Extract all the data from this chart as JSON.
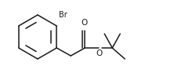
{
  "bg_color": "#ffffff",
  "line_color": "#1a1a1a",
  "text_color": "#1a1a1a",
  "figsize": [
    2.5,
    0.98
  ],
  "dpi": 100,
  "Br_label": "Br",
  "O_label": "O",
  "O2_label": "O",
  "lw": 1.1
}
